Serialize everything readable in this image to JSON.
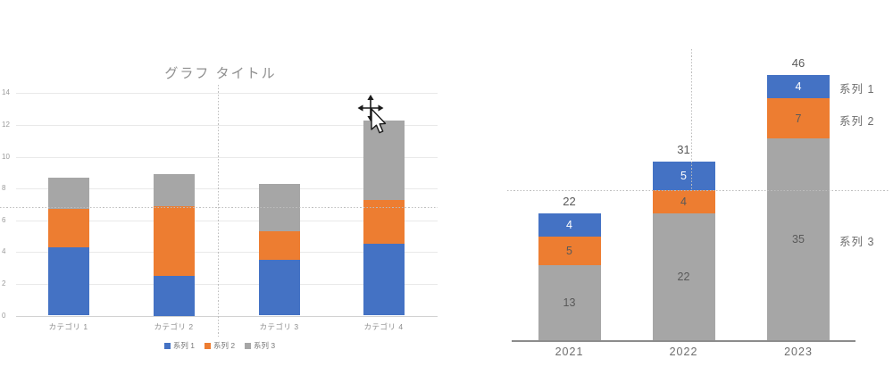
{
  "chart_data": [
    {
      "type": "bar",
      "variant": "stacked-column",
      "title": "グラフ タイトル",
      "categories": [
        "カテゴリ 1",
        "カテゴリ 2",
        "カテゴリ 3",
        "カテゴリ 4"
      ],
      "series": [
        {
          "name": "系列 1",
          "color": "#4472C4",
          "values": [
            4.3,
            2.5,
            3.5,
            4.5
          ]
        },
        {
          "name": "系列 2",
          "color": "#ED7D31",
          "values": [
            2.4,
            4.4,
            1.8,
            2.8
          ]
        },
        {
          "name": "系列 3",
          "color": "#A6A6A6",
          "values": [
            2.0,
            2.0,
            3.0,
            5.0
          ]
        }
      ],
      "stack_totals": [
        8.7,
        8.9,
        8.3,
        12.3
      ],
      "ylim": [
        0,
        14
      ],
      "yticks": [
        "0",
        "2",
        "4",
        "6",
        "8",
        "10",
        "12",
        "14"
      ],
      "grid": "horizontal",
      "legend_position": "bottom",
      "data_labels": false
    },
    {
      "type": "bar",
      "variant": "stacked-column",
      "title": "",
      "categories": [
        "2021",
        "2022",
        "2023"
      ],
      "series": [
        {
          "name": "系列 3",
          "color": "#A6A6A6",
          "values": [
            13,
            22,
            35
          ],
          "label_color": "#595959"
        },
        {
          "name": "系列 2",
          "color": "#ED7D31",
          "values": [
            5,
            4,
            7
          ],
          "label_color": "#595959"
        },
        {
          "name": "系列 1",
          "color": "#4472C4",
          "values": [
            4,
            5,
            4
          ],
          "label_color": "#ffffff"
        }
      ],
      "stack_totals": [
        22,
        31,
        46
      ],
      "total_labels": [
        "22",
        "31",
        "46"
      ],
      "segment_labels": [
        [
          "13",
          "22",
          "35"
        ],
        [
          "5",
          "4",
          "7"
        ],
        [
          "4",
          "5",
          "4"
        ]
      ],
      "series_name_labels_right": [
        "系列 1",
        "系列 2",
        "系列 3"
      ],
      "ylim": [
        0,
        50
      ],
      "grid": "off",
      "legend_position": "right-inline",
      "data_labels": true,
      "axis": "x-only"
    }
  ],
  "guides": {
    "description": "dotted drag-alignment crosshair guides",
    "color": "#bdbdbd",
    "left_chart": {
      "horizontal": true,
      "vertical": true
    },
    "right_chart": {
      "horizontal": true,
      "vertical": true
    }
  },
  "cursor": {
    "type": "move",
    "description": "arrow pointer with four-way move crosshair"
  },
  "colors": {
    "series1_blue": "#4472C4",
    "series2_orange": "#ED7D31",
    "series3_gray": "#A6A6A6",
    "gridline": "#e9e9e9",
    "axis_text": "#8c8c8c",
    "title_text": "#8f8f8f",
    "label_dark": "#595959",
    "background": "#ffffff"
  }
}
